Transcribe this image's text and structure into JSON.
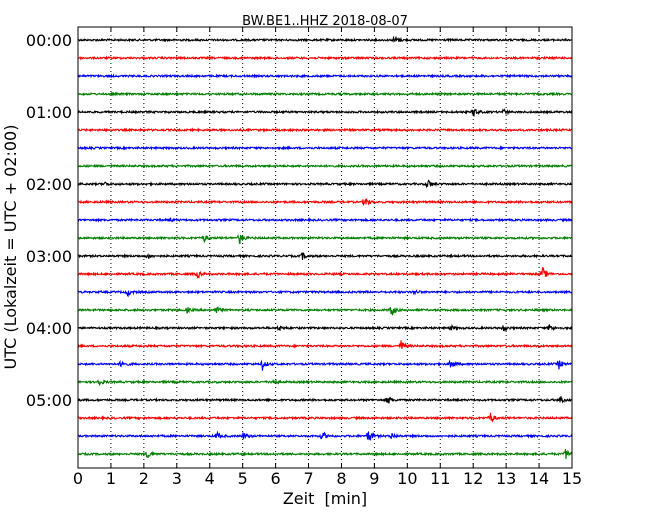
{
  "chart_data": {
    "type": "line",
    "title": "BW.BE1..HHZ 2018-08-07",
    "xlabel": "Zeit  [min]",
    "ylabel": "UTC (Lokalzeit = UTC + 02:00)",
    "xlim": [
      0,
      15
    ],
    "x_ticks": [
      "0",
      "1",
      "2",
      "3",
      "4",
      "5",
      "6",
      "7",
      "8",
      "9",
      "10",
      "11",
      "12",
      "13",
      "14",
      "15"
    ],
    "y_tick_labels": [
      {
        "row": 0,
        "label": "00:00"
      },
      {
        "row": 4,
        "label": "01:00"
      },
      {
        "row": 8,
        "label": "02:00"
      },
      {
        "row": 12,
        "label": "03:00"
      },
      {
        "row": 16,
        "label": "04:00"
      },
      {
        "row": 20,
        "label": "05:00"
      }
    ],
    "grid": "vertical dotted, every 1 min",
    "minutes_per_row": 15,
    "row_colors": [
      "#000000",
      "#ff0000",
      "#0000ff",
      "#008000"
    ],
    "rows": [
      {
        "start": "00:00",
        "events": [
          {
            "t": 9.6,
            "amp": 6
          }
        ]
      },
      {
        "start": "00:15",
        "events": []
      },
      {
        "start": "00:30",
        "events": []
      },
      {
        "start": "00:45",
        "events": []
      },
      {
        "start": "01:00",
        "events": [
          {
            "t": 12.0,
            "amp": 6
          },
          {
            "t": 12.9,
            "amp": 3
          }
        ]
      },
      {
        "start": "01:15",
        "events": []
      },
      {
        "start": "01:30",
        "events": []
      },
      {
        "start": "01:45",
        "events": []
      },
      {
        "start": "02:00",
        "events": [
          {
            "t": 0.8,
            "amp": 2
          },
          {
            "t": 10.6,
            "amp": 6
          }
        ]
      },
      {
        "start": "02:15",
        "events": [
          {
            "t": 8.7,
            "amp": 6
          }
        ]
      },
      {
        "start": "02:30",
        "events": [
          {
            "t": 2.8,
            "amp": 2
          }
        ]
      },
      {
        "start": "02:45",
        "events": [
          {
            "t": 3.8,
            "amp": 5
          },
          {
            "t": 4.9,
            "amp": 6
          }
        ]
      },
      {
        "start": "03:00",
        "events": [
          {
            "t": 2.1,
            "amp": 3
          },
          {
            "t": 6.8,
            "amp": 4
          }
        ]
      },
      {
        "start": "03:15",
        "events": [
          {
            "t": 3.6,
            "amp": 5
          },
          {
            "t": 14.1,
            "amp": 7
          }
        ]
      },
      {
        "start": "03:30",
        "events": [
          {
            "t": 1.5,
            "amp": 4
          },
          {
            "t": 10.2,
            "amp": 3
          }
        ]
      },
      {
        "start": "03:45",
        "events": [
          {
            "t": 3.3,
            "amp": 3
          },
          {
            "t": 4.2,
            "amp": 4
          },
          {
            "t": 9.5,
            "amp": 8
          }
        ]
      },
      {
        "start": "04:00",
        "events": [
          {
            "t": 6.1,
            "amp": 3
          },
          {
            "t": 11.3,
            "amp": 3
          },
          {
            "t": 12.9,
            "amp": 3
          },
          {
            "t": 14.3,
            "amp": 4
          }
        ]
      },
      {
        "start": "04:15",
        "events": [
          {
            "t": 9.8,
            "amp": 6
          }
        ]
      },
      {
        "start": "04:30",
        "events": [
          {
            "t": 1.3,
            "amp": 5
          },
          {
            "t": 5.6,
            "amp": 6
          },
          {
            "t": 11.3,
            "amp": 6
          },
          {
            "t": 14.6,
            "amp": 5
          }
        ]
      },
      {
        "start": "04:45",
        "events": [
          {
            "t": 0.6,
            "amp": 5
          },
          {
            "t": 5.9,
            "amp": 3
          }
        ]
      },
      {
        "start": "05:00",
        "events": [
          {
            "t": 9.4,
            "amp": 5
          },
          {
            "t": 14.6,
            "amp": 6
          }
        ]
      },
      {
        "start": "05:15",
        "events": [
          {
            "t": 12.5,
            "amp": 7
          }
        ]
      },
      {
        "start": "05:30",
        "events": [
          {
            "t": 4.2,
            "amp": 5
          },
          {
            "t": 5.0,
            "amp": 4
          },
          {
            "t": 7.4,
            "amp": 6
          },
          {
            "t": 8.8,
            "amp": 9
          },
          {
            "t": 9.5,
            "amp": 4
          }
        ]
      },
      {
        "start": "05:45",
        "events": [
          {
            "t": 2.1,
            "amp": 5
          },
          {
            "t": 14.8,
            "amp": 6
          }
        ]
      }
    ]
  }
}
